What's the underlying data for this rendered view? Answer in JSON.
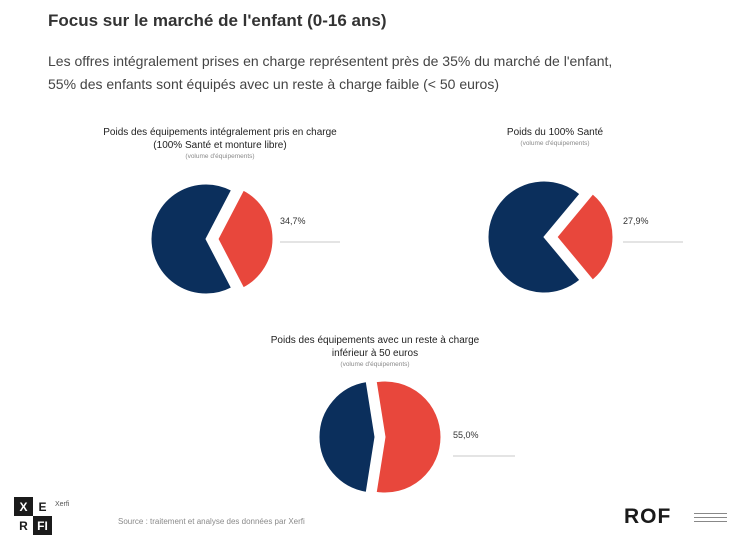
{
  "header": {
    "title": "Focus sur le marché de l'enfant (0-16 ans)",
    "subtitle_lines": [
      "Les offres intégralement prises en charge représentent près de 35% du marché de l'enfant,",
      "55% des enfants sont équipés avec un reste à charge faible (< 50 euros)"
    ]
  },
  "chart_data": [
    {
      "type": "pie",
      "title_lines": [
        "Poids des équipements intégralement pris en charge",
        "(100% Santé et monture libre)"
      ],
      "note": "(volume d'équipements)",
      "categories": [
        "",
        ""
      ],
      "values": [
        65.3,
        34.7
      ],
      "value_label": "34,7%",
      "colors": [
        "#0b2f5c",
        "#e8473c"
      ]
    },
    {
      "type": "pie",
      "title_lines": [
        "Poids du 100% Santé"
      ],
      "note": "(volume d'équipements)",
      "categories": [
        "",
        ""
      ],
      "values": [
        72.1,
        27.9
      ],
      "value_label": "27,9%",
      "colors": [
        "#0b2f5c",
        "#e8473c"
      ]
    },
    {
      "type": "pie",
      "title_lines": [
        "Poids des équipements avec un reste à charge",
        "inférieur à 50 euros"
      ],
      "note": "(volume d'équipements)",
      "categories": [
        "",
        ""
      ],
      "values": [
        45.0,
        55.0
      ],
      "value_label": "55,0%",
      "colors": [
        "#0b2f5c",
        "#e8473c"
      ]
    }
  ],
  "footer": {
    "xerfi_letters": [
      "X",
      "E",
      "R",
      "F",
      "I"
    ],
    "xerfi_sub": "Xerfi",
    "source": "Source : traitement et analyse des données par Xerfi",
    "rof_logo": "ROF"
  }
}
